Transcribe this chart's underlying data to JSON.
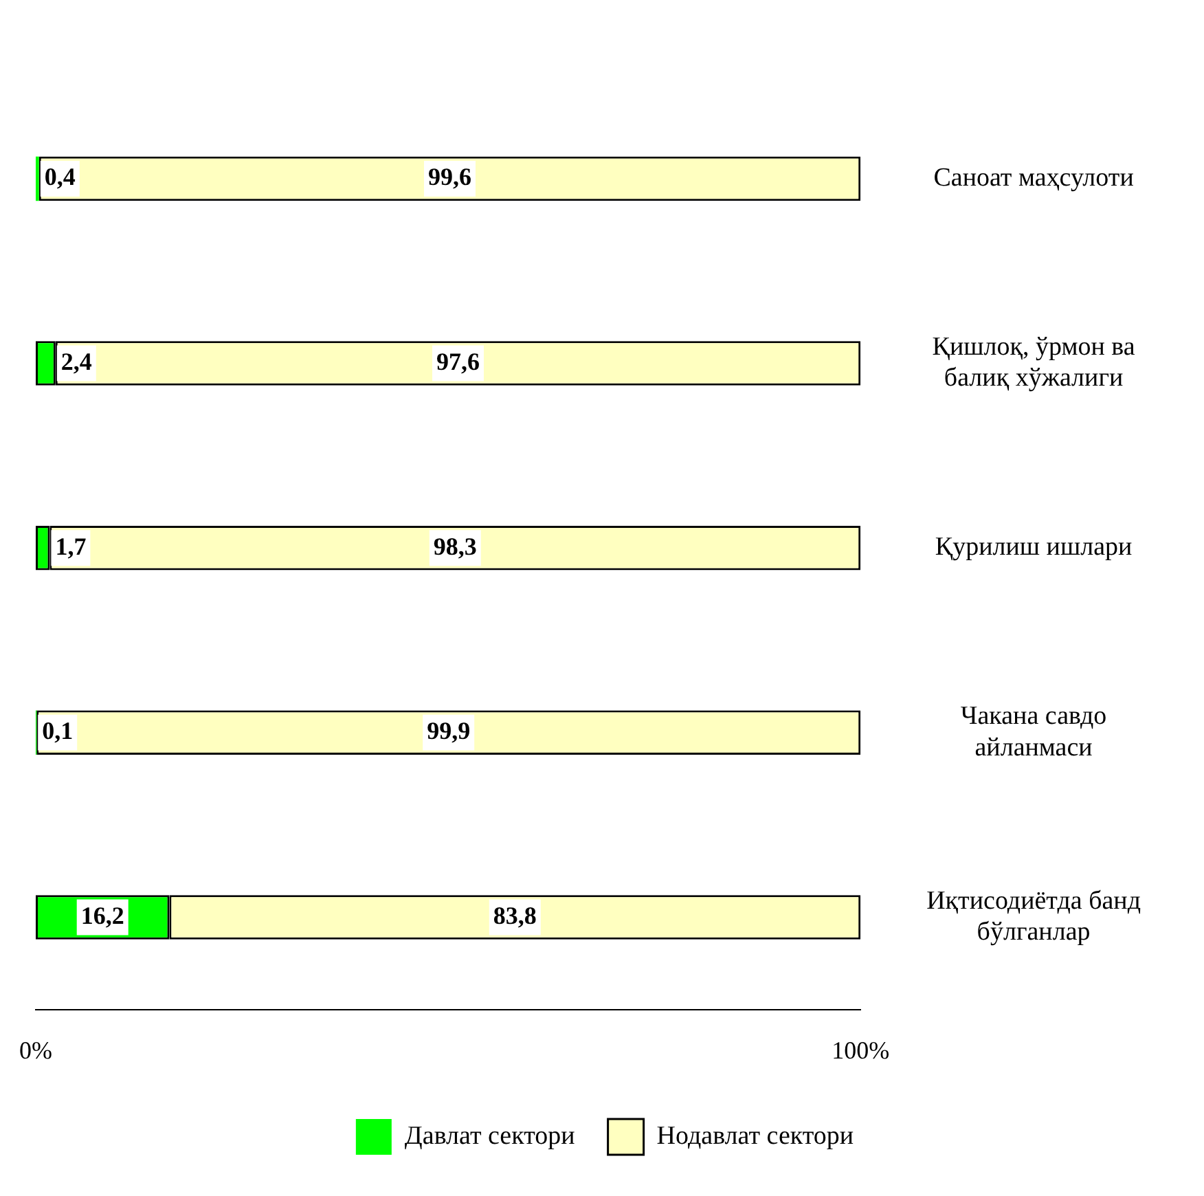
{
  "chart_data": {
    "type": "bar",
    "orientation": "horizontal",
    "stacked": true,
    "categories": [
      "Саноат маҳсулоти",
      "Қишлоқ, ўрмон ва балиқ хўжалиги",
      "Қурилиш ишлари",
      "Чакана савдо айланмаси",
      "Иқтисодиётда банд бўлганлар"
    ],
    "series": [
      {
        "name": "Давлат сектори",
        "color": "#00ff00",
        "values": [
          0.4,
          2.4,
          1.7,
          0.1,
          16.2
        ],
        "value_labels": [
          "0,4",
          "2,4",
          "1,7",
          "0,1",
          "16,2"
        ]
      },
      {
        "name": "Нодавлат сектори",
        "color": "#ffffc0",
        "values": [
          99.6,
          97.6,
          98.3,
          99.9,
          83.8
        ],
        "value_labels": [
          "99,6",
          "97,6",
          "98,3",
          "99,9",
          "83,8"
        ]
      }
    ],
    "xlim": [
      0,
      100
    ],
    "xticks": [
      {
        "value": 0,
        "label": "0%"
      },
      {
        "value": 100,
        "label": "100%"
      }
    ],
    "grid": false,
    "legend": "bottom"
  }
}
